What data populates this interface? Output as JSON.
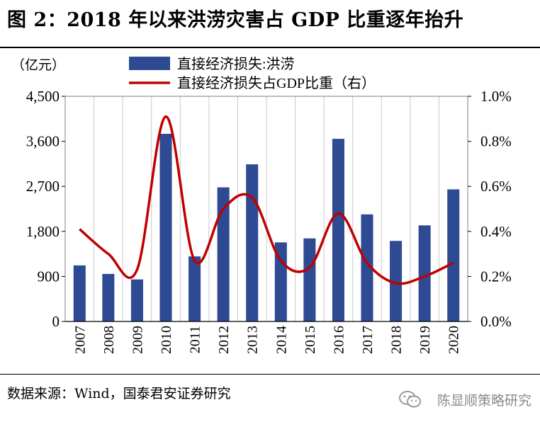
{
  "title": "图 2：2018 年以来洪涝灾害占 GDP 比重逐年抬升",
  "source": "数据来源：Wind，国泰君安证券研究",
  "watermark": "陈显顺策略研究",
  "chart_data": {
    "type": "bar",
    "categories": [
      "2007",
      "2008",
      "2009",
      "2010",
      "2011",
      "2012",
      "2013",
      "2014",
      "2015",
      "2016",
      "2017",
      "2018",
      "2019",
      "2020"
    ],
    "y_left_unit": "（亿元）",
    "y_left_ticks": [
      "0",
      "900",
      "1,800",
      "2,700",
      "3,600",
      "4,500"
    ],
    "y_right_ticks": [
      "0.0%",
      "0.2%",
      "0.4%",
      "0.6%",
      "0.8%",
      "1.0%"
    ],
    "ylim_left": [
      0,
      4500
    ],
    "ylim_right": [
      0,
      1.0
    ],
    "grid": "vertical",
    "legend_position": "top",
    "series": [
      {
        "name": "直接经济损失:洪涝",
        "type": "bar",
        "axis": "left",
        "color": "#2E4A93",
        "values": [
          1120,
          950,
          840,
          3750,
          1300,
          2680,
          3140,
          1580,
          1660,
          3650,
          2140,
          1610,
          1920,
          2640
        ]
      },
      {
        "name": "直接经济损失占GDP比重（右）",
        "type": "line",
        "axis": "right",
        "color": "#C00000",
        "values": [
          0.41,
          0.3,
          0.23,
          0.91,
          0.27,
          0.5,
          0.55,
          0.27,
          0.24,
          0.48,
          0.26,
          0.17,
          0.2,
          0.26
        ]
      }
    ]
  }
}
